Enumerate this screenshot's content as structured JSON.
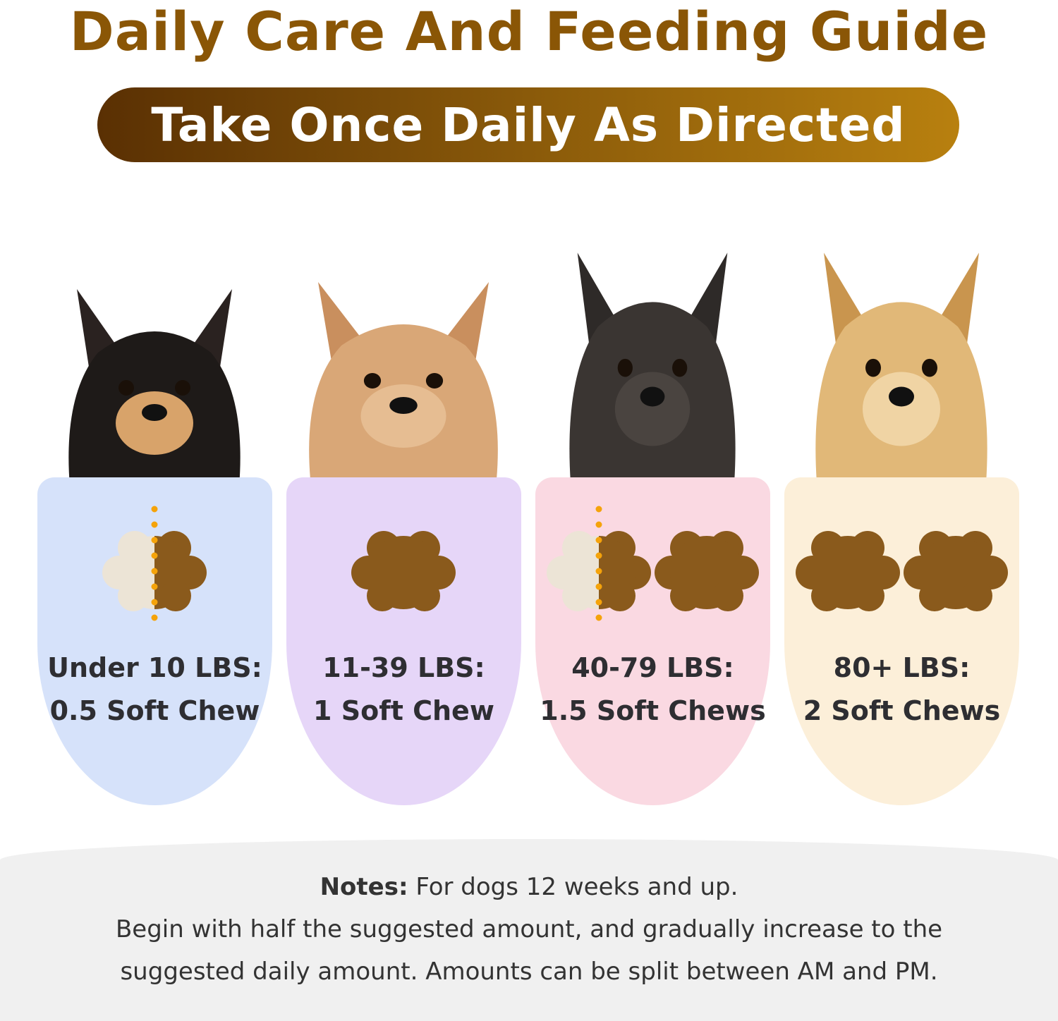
{
  "title": "Daily Care And Feeding Guide",
  "subtitle": "Take Once Daily As Directed",
  "colors": {
    "title": "#8a5606",
    "pill_start": "#5a3003",
    "pill_end": "#b8800f",
    "chew": "#8a5a1c",
    "half_chew": "#ece4d6",
    "divider": "#f5a30a"
  },
  "cards": [
    {
      "weight": "Under 10 LBS:",
      "dose": "0.5 Soft Chew",
      "chews": 0.5,
      "background": "#d6e2fa",
      "dog": "chihuahua"
    },
    {
      "weight": "11-39 LBS:",
      "dose": "1 Soft Chew",
      "chews": 1,
      "background": "#e6d6f8",
      "dog": "poodle"
    },
    {
      "weight": "40-79 LBS:",
      "dose": "1.5 Soft Chews",
      "chews": 1.5,
      "background": "#fad9e2",
      "dog": "french-bulldog"
    },
    {
      "weight": "80+ LBS:",
      "dose": "2 Soft Chews",
      "chews": 2,
      "background": "#fcefd9",
      "dog": "golden-retriever"
    }
  ],
  "notes": {
    "label": "Notes:",
    "line1": "For dogs 12 weeks and up.",
    "line2": "Begin with half the suggested amount, and gradually increase to the",
    "line3": "suggested daily amount. Amounts can be split between AM and PM."
  }
}
